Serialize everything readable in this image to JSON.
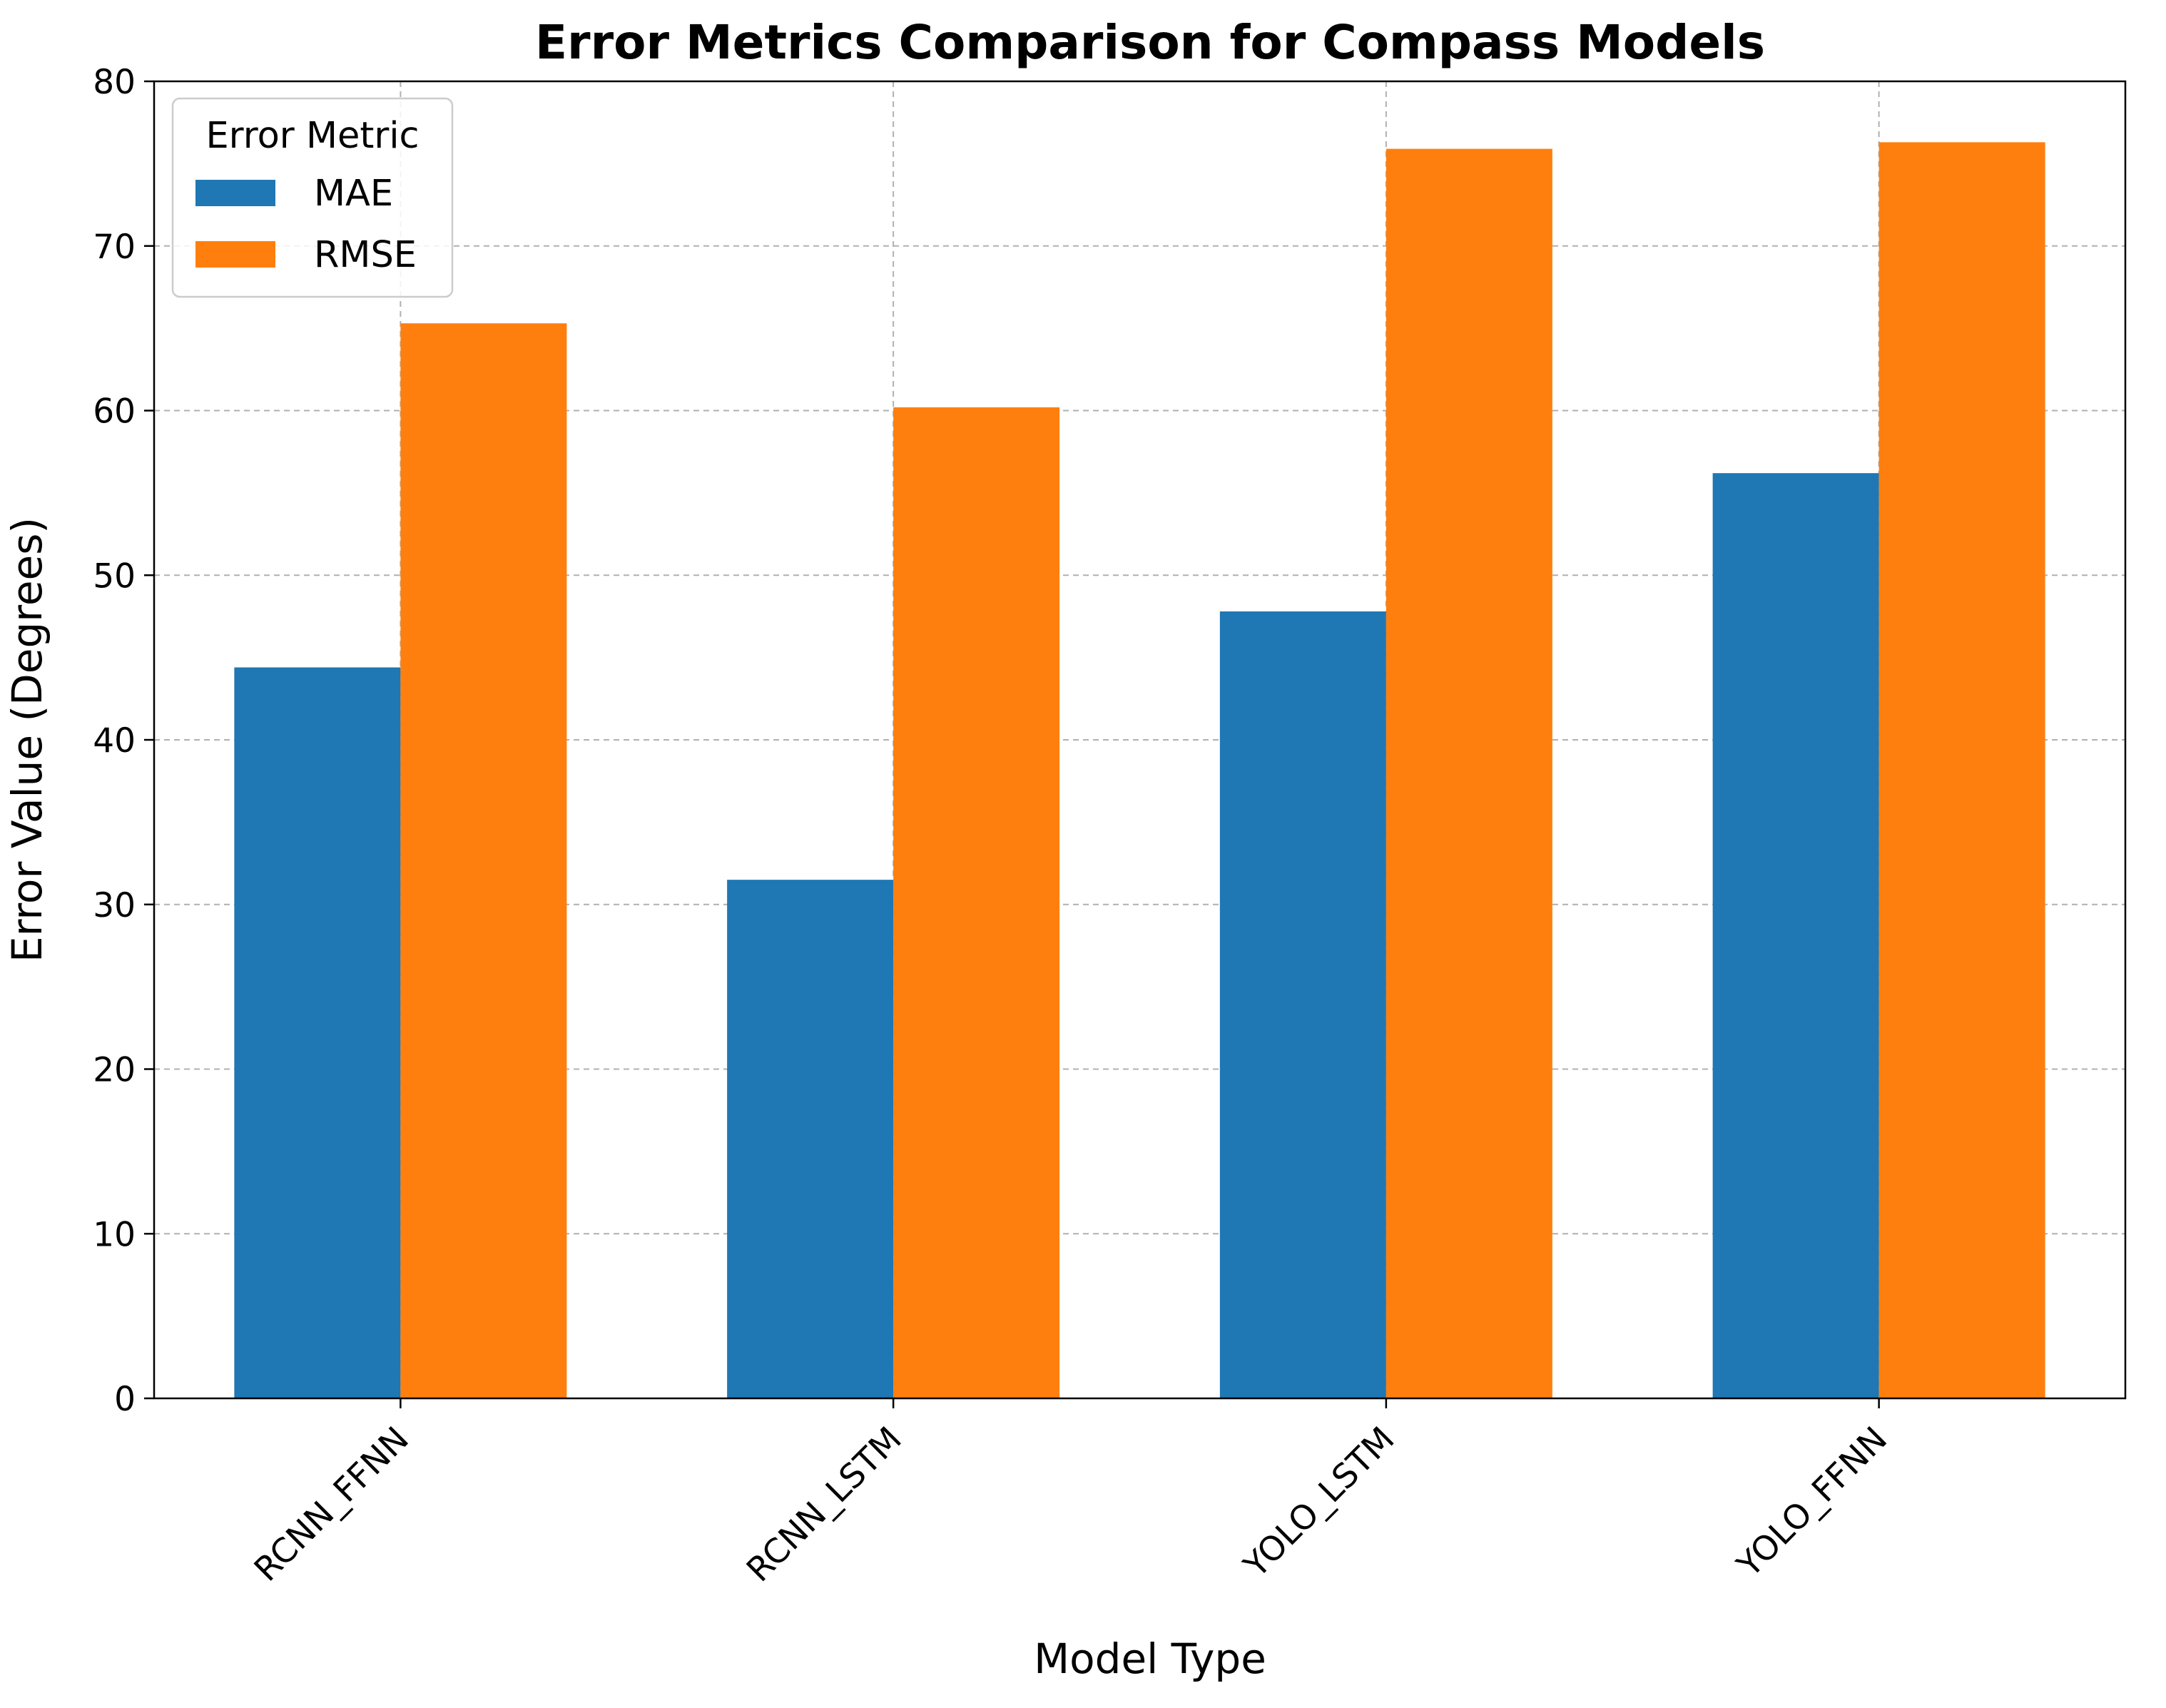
{
  "chart_data": {
    "type": "bar",
    "title": "Error Metrics Comparison for Compass Models",
    "xlabel": "Model Type",
    "ylabel": "Error Value (Degrees)",
    "categories": [
      "RCNN_FFNN",
      "RCNN_LSTM",
      "YOLO_LSTM",
      "YOLO_FFNN"
    ],
    "series": [
      {
        "name": "MAE",
        "color": "#1f77b4",
        "values": [
          44.4,
          31.5,
          47.8,
          56.2
        ]
      },
      {
        "name": "RMSE",
        "color": "#ff7f0e",
        "values": [
          65.3,
          60.2,
          75.9,
          76.3
        ]
      }
    ],
    "ylim": [
      0,
      80
    ],
    "yticks": [
      "0",
      "10",
      "20",
      "30",
      "40",
      "50",
      "60",
      "70",
      "80"
    ],
    "grid": true,
    "legend": {
      "title": "Error Metric",
      "placement": "top-left"
    }
  }
}
